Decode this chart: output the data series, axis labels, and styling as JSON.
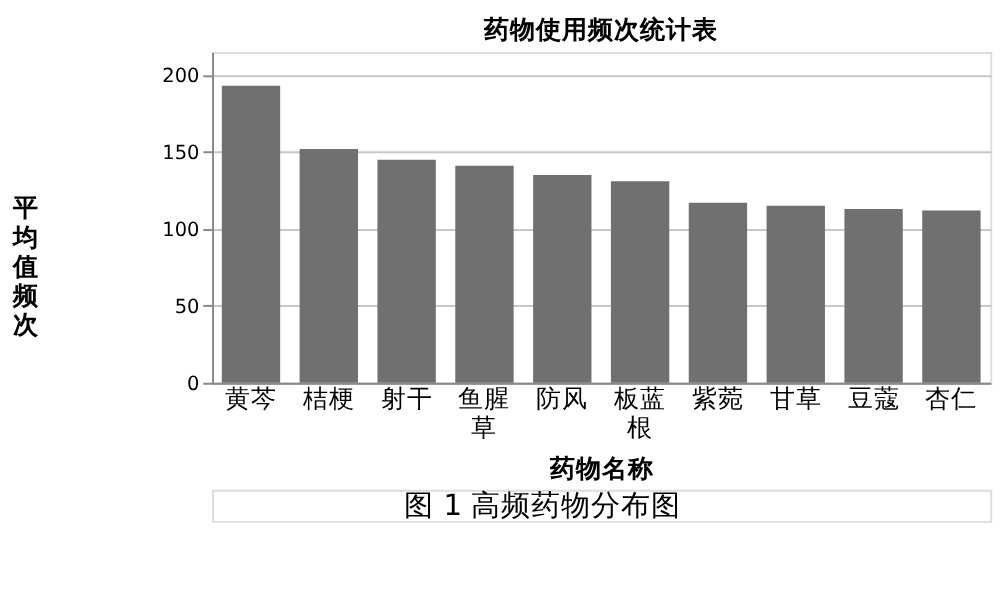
{
  "chart_data": {
    "type": "bar",
    "title": "药物使用频次统计表",
    "xlabel": "药物名称",
    "ylabel": "平均值频次",
    "categories": [
      "黄芩",
      "桔梗",
      "射干",
      "鱼腥草",
      "防风",
      "板蓝根",
      "紫菀",
      "甘草",
      "豆蔻",
      "杏仁"
    ],
    "values": [
      193,
      152,
      145,
      141,
      135,
      131,
      117,
      115,
      113,
      112
    ],
    "color": "#707070",
    "ylim": [
      0,
      215
    ],
    "yticks": [
      0,
      50,
      100,
      150,
      200
    ],
    "grid": "y",
    "annotations": [
      "图 1 高频药物分布图"
    ]
  }
}
